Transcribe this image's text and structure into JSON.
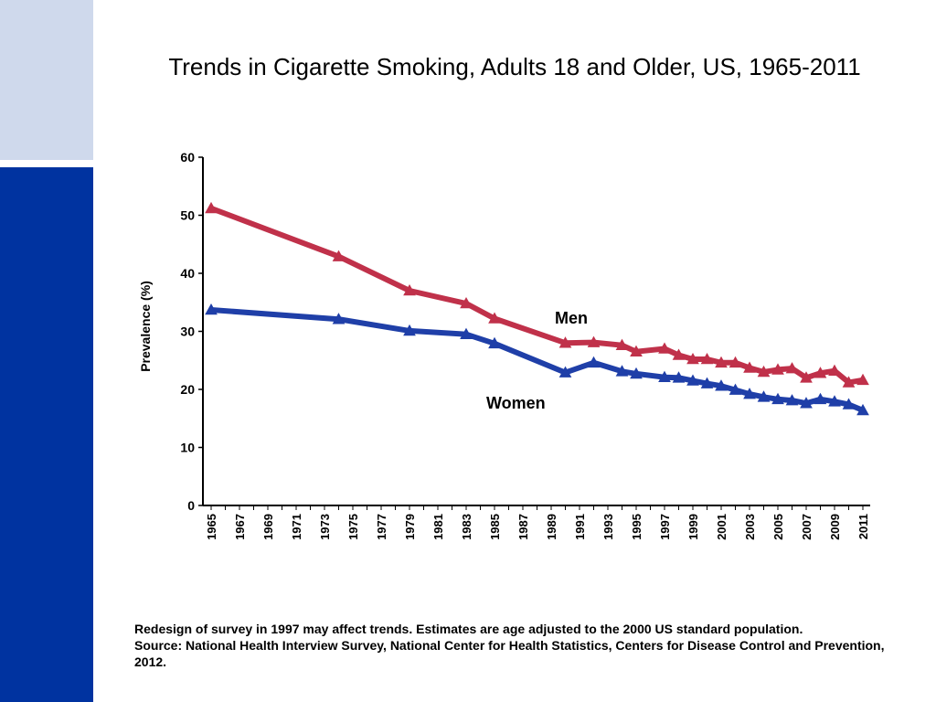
{
  "slide": {
    "title": "Trends in Cigarette Smoking, Adults 18 and Older, US, 1965-2011",
    "footnote_line1": "Redesign of survey  in 1997 may affect trends. Estimates are age adjusted to the 2000 US standard population.",
    "footnote_line2": "Source: National Health Interview Survey, National Center for Health Statistics, Centers for Disease Control and Prevention, 2012."
  },
  "colors": {
    "men": "#c0314a",
    "women": "#1f3fa8",
    "sidebar_light": "#cfd9ec",
    "sidebar_dark": "#0033a0"
  },
  "chart_data": {
    "type": "line",
    "title": "Trends in Cigarette Smoking, Adults 18 and Older, US, 1965-2011",
    "xlabel": "",
    "ylabel": "Prevalence (%)",
    "ylim": [
      0,
      60
    ],
    "yticks": [
      0,
      10,
      20,
      30,
      40,
      50,
      60
    ],
    "xlim": [
      1965,
      2011
    ],
    "xtick_labels": [
      "1965",
      "1967",
      "1969",
      "1971",
      "1973",
      "1975",
      "1977",
      "1979",
      "1981",
      "1983",
      "1985",
      "1987",
      "1989",
      "1991",
      "1993",
      "1995",
      "1997",
      "1999",
      "2001",
      "2003",
      "2005",
      "2007",
      "2009",
      "2011"
    ],
    "grid": false,
    "series": [
      {
        "name": "Men",
        "x": [
          1965,
          1974,
          1979,
          1983,
          1985,
          1990,
          1992,
          1994,
          1995,
          1997,
          1998,
          1999,
          2000,
          2001,
          2002,
          2003,
          2004,
          2005,
          2006,
          2007,
          2008,
          2009,
          2010,
          2011
        ],
        "values": [
          51.2,
          42.9,
          37.0,
          34.8,
          32.2,
          28.0,
          28.1,
          27.6,
          26.5,
          27.0,
          25.9,
          25.2,
          25.2,
          24.6,
          24.6,
          23.7,
          23.0,
          23.4,
          23.6,
          22.0,
          22.8,
          23.2,
          21.2,
          21.6
        ]
      },
      {
        "name": "Women",
        "x": [
          1965,
          1974,
          1979,
          1983,
          1985,
          1990,
          1992,
          1994,
          1995,
          1997,
          1998,
          1999,
          2000,
          2001,
          2002,
          2003,
          2004,
          2005,
          2006,
          2007,
          2008,
          2009,
          2010,
          2011
        ],
        "values": [
          33.7,
          32.1,
          30.1,
          29.5,
          27.9,
          22.9,
          24.6,
          23.1,
          22.7,
          22.1,
          22.0,
          21.5,
          21.0,
          20.6,
          19.9,
          19.2,
          18.7,
          18.3,
          18.1,
          17.6,
          18.3,
          17.9,
          17.4,
          16.4
        ]
      }
    ]
  }
}
